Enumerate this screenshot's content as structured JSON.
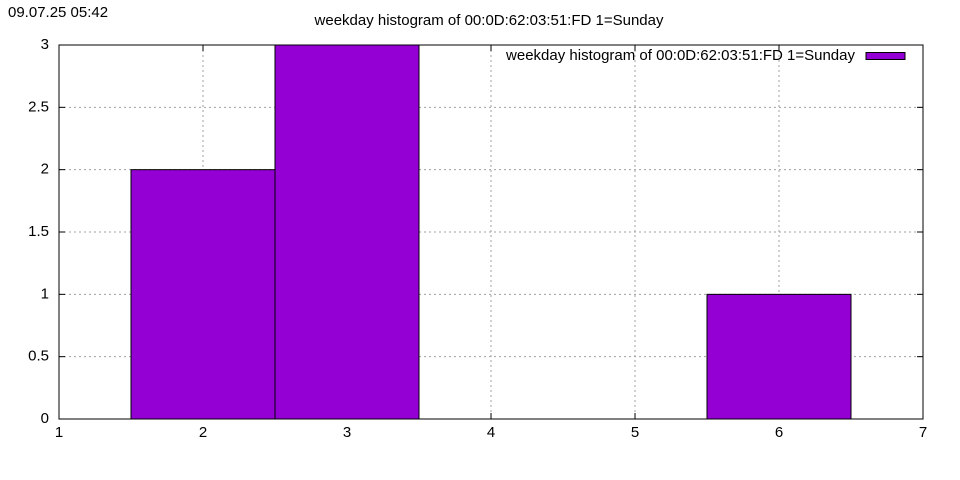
{
  "chart_data": {
    "type": "bar",
    "timestamp": "09.07.25 05:42",
    "title": "weekday histogram of 00:0D:62:03:51:FD 1=Sunday",
    "x": [
      2,
      3,
      6
    ],
    "series": [
      {
        "name": "weekday histogram of 00:0D:62:03:51:FD 1=Sunday",
        "color": "#9400d3",
        "values": [
          2,
          3,
          1
        ]
      }
    ],
    "xlim": [
      1,
      7
    ],
    "xticks": [
      1,
      2,
      3,
      4,
      5,
      6,
      7
    ],
    "ylim": [
      0,
      3
    ],
    "yticks": [
      0,
      0.5,
      1,
      1.5,
      2,
      2.5,
      3
    ],
    "grid": true,
    "legend": "top-right"
  }
}
